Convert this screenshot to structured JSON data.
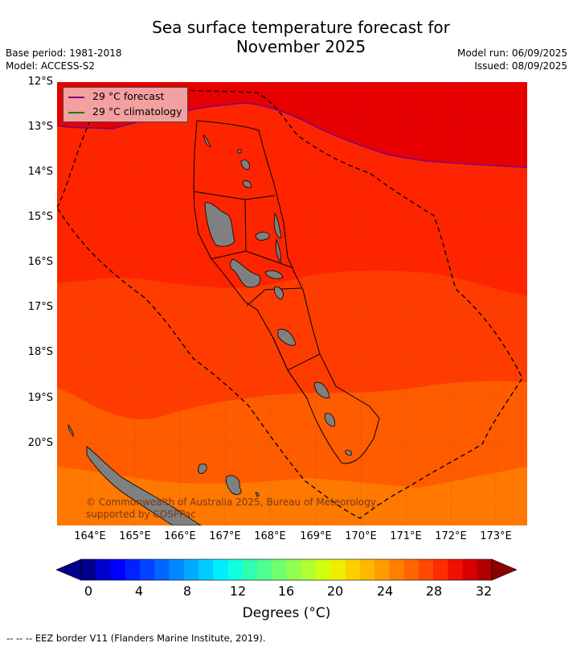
{
  "title_line1": "Sea surface temperature forecast for",
  "title_line2": "November 2025",
  "base_period": "Base period: 1981-2018",
  "model": "Model: ACCESS-S2",
  "model_run": "Model run: 06/09/2025",
  "issued": "Issued: 08/09/2025",
  "lat_labels": [
    "12°S",
    "13°S",
    "14°S",
    "15°S",
    "16°S",
    "17°S",
    "18°S",
    "19°S",
    "20°S"
  ],
  "lon_labels": [
    "164°E",
    "165°E",
    "166°E",
    "167°E",
    "168°E",
    "169°E",
    "170°E",
    "171°E",
    "172°E",
    "173°E"
  ],
  "legend": {
    "forecast": "29 °C  forecast",
    "climatology": "29 °C  climatology",
    "forecast_color": "#800080",
    "climatology_color": "#008000"
  },
  "copyright": "© Commonwealth of Australia 2025, Bureau of Meteorology, supported by COSPPac",
  "colorbar": {
    "ticks": [
      "0",
      "4",
      "8",
      "12",
      "16",
      "20",
      "24",
      "28",
      "32"
    ],
    "label": "Degrees (°C)",
    "colors": [
      "#00008b",
      "#0000cd",
      "#0000ff",
      "#0022ff",
      "#0044ff",
      "#0066ff",
      "#0088ff",
      "#00aaff",
      "#00ccff",
      "#00eeff",
      "#10ffe0",
      "#30ffb0",
      "#50ff90",
      "#70ff70",
      "#90ff50",
      "#b0ff30",
      "#d0ff10",
      "#f0ee00",
      "#ffd000",
      "#ffb800",
      "#ff9c00",
      "#ff8000",
      "#ff6400",
      "#ff4800",
      "#ff2c00",
      "#f01000",
      "#d80000",
      "#b00000"
    ]
  },
  "eez_note": "--  --  -- EEZ border V11 (Flanders Marine Institute, 2019).",
  "map_colors": {
    "band_29_plus": "#e60000",
    "band_28_29": "#ff2400",
    "band_27_28": "#ff3c00",
    "band_26_27": "#ff5c00",
    "band_below_26": "#ff7800",
    "land": "#808080"
  }
}
